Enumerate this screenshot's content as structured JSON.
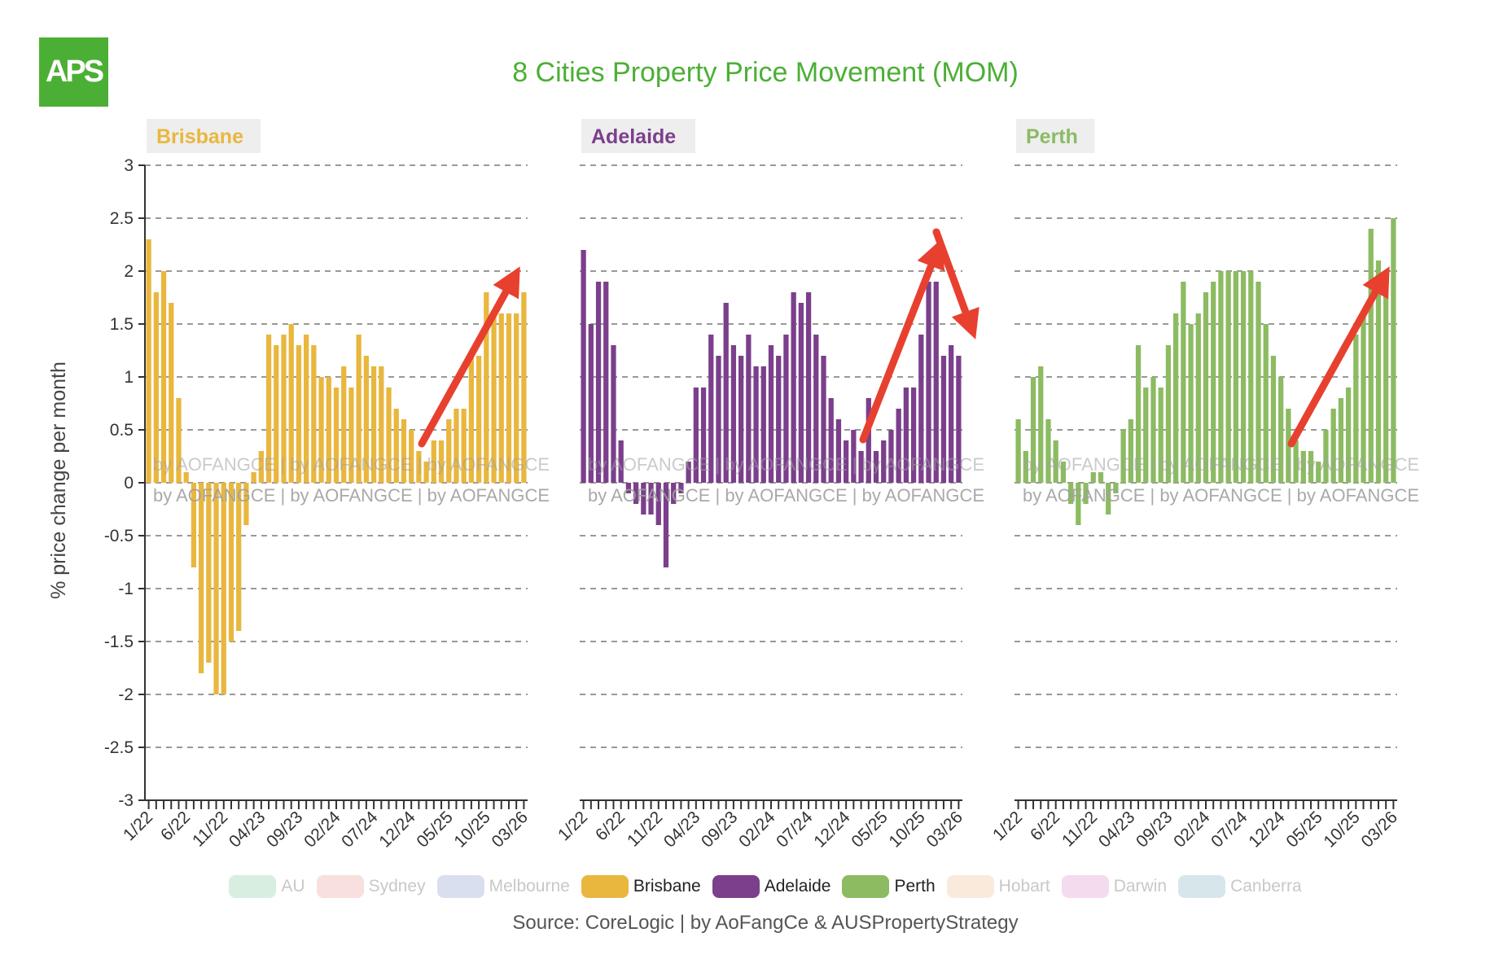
{
  "logo": {
    "text": "APS",
    "color": "#4caf35"
  },
  "title": "8 Cities Property Price Movement (MOM)",
  "source": "Source: CoreLogic | by AoFangCe & AUSPropertyStrategy",
  "watermark": "by AOFANGCE | by AOFANGCE | by AOFANGCE",
  "chart_data": {
    "type": "bar",
    "ylabel": "% price change per month",
    "ylim": [
      -3,
      3
    ],
    "yticks": [
      3,
      2.5,
      2,
      1.5,
      1,
      0.5,
      0,
      -0.5,
      -1,
      -1.5,
      -2,
      -2.5,
      -3
    ],
    "ytick_labels": [
      "3",
      "2.5",
      "2",
      "1.5",
      "1",
      "0.5",
      "0",
      "-0.5",
      "-1",
      "-1.5",
      "-2",
      "-2.5",
      "-3"
    ],
    "x_tick_labels": [
      {
        "label": "1/22",
        "index": 0
      },
      {
        "label": "6/22",
        "index": 5
      },
      {
        "label": "11/22",
        "index": 10
      },
      {
        "label": "04/23",
        "index": 15
      },
      {
        "label": "09/23",
        "index": 20
      },
      {
        "label": "02/24",
        "index": 25
      },
      {
        "label": "07/24",
        "index": 30
      },
      {
        "label": "12/24",
        "index": 35
      },
      {
        "label": "05/25",
        "index": 40
      },
      {
        "label": "10/25",
        "index": 45
      },
      {
        "label": "03/26",
        "index": 50
      }
    ],
    "grid": "dashed horizontal",
    "series": [
      {
        "name": "Brisbane",
        "color": "#e9b73e",
        "annotation": "up",
        "values": [
          2.3,
          1.8,
          2.0,
          1.7,
          0.8,
          0.1,
          -0.8,
          -1.8,
          -1.7,
          -2.0,
          -2.0,
          -1.5,
          -1.4,
          -0.4,
          0.1,
          0.3,
          1.4,
          1.3,
          1.4,
          1.5,
          1.3,
          1.4,
          1.3,
          1.0,
          1.0,
          0.9,
          1.1,
          0.9,
          1.4,
          1.2,
          1.1,
          1.1,
          0.9,
          0.7,
          0.6,
          0.5,
          0.3,
          0.2,
          0.4,
          0.4,
          0.6,
          0.7,
          0.7,
          1.2,
          1.2,
          1.8,
          1.6,
          1.6,
          1.6,
          1.6,
          1.8
        ]
      },
      {
        "name": "Adelaide",
        "color": "#7b3f8c",
        "annotation": "up-then-down",
        "values": [
          2.2,
          1.5,
          1.9,
          1.9,
          1.3,
          0.4,
          -0.1,
          -0.2,
          -0.3,
          -0.3,
          -0.4,
          -0.8,
          -0.2,
          -0.1,
          0.2,
          0.9,
          0.9,
          1.4,
          1.2,
          1.7,
          1.3,
          1.2,
          1.4,
          1.1,
          1.1,
          1.3,
          1.2,
          1.4,
          1.8,
          1.7,
          1.8,
          1.4,
          1.2,
          0.8,
          0.6,
          0.4,
          0.5,
          0.3,
          0.8,
          0.3,
          0.4,
          0.5,
          0.7,
          0.9,
          0.9,
          1.4,
          1.9,
          1.9,
          1.2,
          1.3,
          1.2
        ]
      },
      {
        "name": "Perth",
        "color": "#8cbb62",
        "annotation": "up",
        "values": [
          0.6,
          0.3,
          1.0,
          1.1,
          0.6,
          0.4,
          0.2,
          -0.2,
          -0.4,
          -0.2,
          0.1,
          0.1,
          -0.3,
          -0.1,
          0.5,
          0.6,
          1.3,
          0.9,
          1.0,
          0.9,
          1.3,
          1.6,
          1.9,
          1.5,
          1.6,
          1.8,
          1.9,
          2.0,
          2.0,
          2.0,
          2.0,
          2.0,
          1.9,
          1.5,
          1.2,
          1.0,
          0.7,
          0.4,
          0.3,
          0.3,
          0.2,
          0.5,
          0.7,
          0.8,
          0.9,
          1.4,
          1.6,
          2.4,
          2.1,
          1.9,
          2.5
        ]
      }
    ]
  },
  "legend": {
    "items": [
      {
        "label": "AU",
        "color": "#b8e0c8",
        "active": false
      },
      {
        "label": "Sydney",
        "color": "#f0c6c2",
        "active": false
      },
      {
        "label": "Melbourne",
        "color": "#b9c5e2",
        "active": false
      },
      {
        "label": "Brisbane",
        "color": "#e9b73e",
        "active": true
      },
      {
        "label": "Adelaide",
        "color": "#7b3f8c",
        "active": true
      },
      {
        "label": "Perth",
        "color": "#8cbb62",
        "active": true
      },
      {
        "label": "Hobart",
        "color": "#f6d8bf",
        "active": false
      },
      {
        "label": "Darwin",
        "color": "#ebbde0",
        "active": false
      },
      {
        "label": "Canberra",
        "color": "#b6d2d9",
        "active": false
      }
    ]
  }
}
